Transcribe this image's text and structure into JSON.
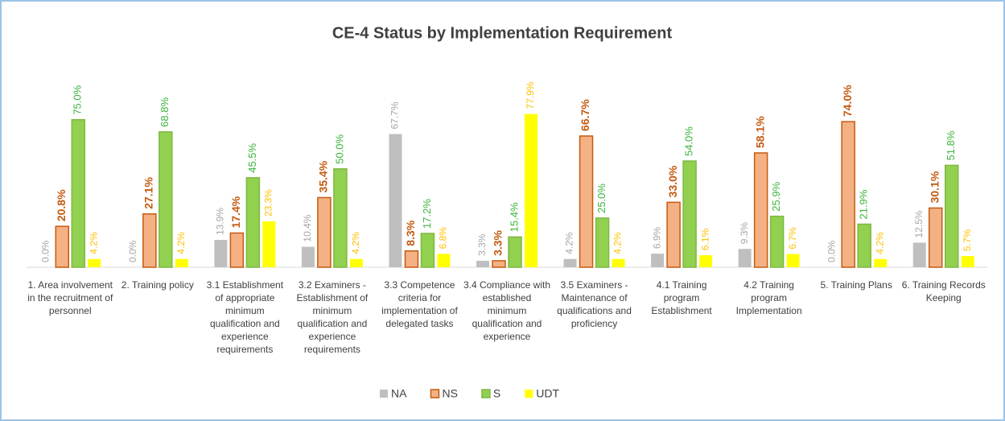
{
  "chart_data": {
    "type": "bar",
    "title": "CE-4 Status by Implementation Requirement",
    "categories": [
      "1. Area involvement in the recruitment of personnel",
      "2. Training policy",
      "3.1 Establishment of appropriate minimum qualification and experience requirements",
      "3.2 Examiners - Establishment of minimum qualification and experience requirements",
      "3.3 Competence criteria for implementation of delegated tasks",
      "3.4 Compliance with established minimum qualification and experience",
      "3.5 Examiners - Maintenance of qualifications and proficiency",
      "4.1 Training program Establishment",
      "4.2 Training program Implementation",
      "5. Training Plans",
      "6. Training Records Keeping"
    ],
    "series": [
      {
        "name": "NA",
        "color": "#bfbfbf",
        "values": [
          0.0,
          0.0,
          13.9,
          10.4,
          67.7,
          3.3,
          4.2,
          6.9,
          9.3,
          0.0,
          12.5
        ],
        "value_labels": [
          "0.0%",
          "0.0%",
          "13.9%",
          "10.4%",
          "67.7%",
          "3.3%",
          "4.2%",
          "6.9%",
          "9.3%",
          "0.0%",
          "12.5%"
        ]
      },
      {
        "name": "NS",
        "color": "#f4b183",
        "values": [
          20.8,
          27.1,
          17.4,
          35.4,
          8.3,
          3.3,
          66.7,
          33.0,
          58.1,
          74.0,
          30.1
        ],
        "value_labels": [
          "20.8%",
          "27.1%",
          "17.4%",
          "35.4%",
          "8.3%",
          "3.3%",
          "66.7%",
          "33.0%",
          "58.1%",
          "74.0%",
          "30.1%"
        ]
      },
      {
        "name": "S",
        "color": "#92d050",
        "values": [
          75.0,
          68.8,
          45.5,
          50.0,
          17.2,
          15.4,
          25.0,
          54.0,
          25.9,
          21.9,
          51.8
        ],
        "value_labels": [
          "75.0%",
          "68.8%",
          "45.5%",
          "50.0%",
          "17.2%",
          "15.4%",
          "25.0%",
          "54.0%",
          "25.9%",
          "21.9%",
          "51.8%"
        ]
      },
      {
        "name": "UDT",
        "color": "#ffff00",
        "values": [
          4.2,
          4.2,
          23.3,
          4.2,
          6.8,
          77.9,
          4.2,
          6.1,
          6.7,
          4.2,
          5.7
        ],
        "value_labels": [
          "4.2%",
          "4.2%",
          "23.3%",
          "4.2%",
          "6.8%",
          "77.9%",
          "4.2%",
          "6.1%",
          "6.7%",
          "4.2%",
          "5.7%"
        ]
      }
    ],
    "ylim": [
      0,
      90
    ],
    "legend": "bottom"
  }
}
